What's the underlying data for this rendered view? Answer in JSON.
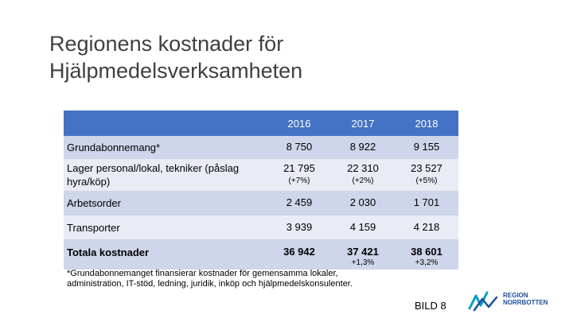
{
  "title": {
    "line1": "Regionens kostnader för",
    "line2": "Hjälpmedelsverksamheten"
  },
  "table": {
    "years": [
      "2016",
      "2017",
      "2018"
    ],
    "rows": [
      {
        "label": "Grundabonnemang*",
        "values": [
          "8 750",
          "8 922",
          "9 155"
        ],
        "changes": []
      },
      {
        "label": "Lager personal/lokal, tekniker (påslag hyra/köp)",
        "values": [
          "21 795",
          "22 310",
          "23 527"
        ],
        "changes": [
          "(+7%)",
          "(+2%)",
          "(+5%)"
        ]
      },
      {
        "label": "Arbetsorder",
        "values": [
          "2 459",
          "2 030",
          "1 701"
        ],
        "changes": []
      },
      {
        "label": "Transporter",
        "values": [
          "3 939",
          "4 159",
          "4 218"
        ],
        "changes": []
      },
      {
        "label": "Totala kostnader",
        "values": [
          "36 942",
          "37 421",
          "38 601"
        ],
        "changes": [
          "",
          "+1,3%",
          "+3,2%"
        ]
      }
    ]
  },
  "footnote": {
    "line1": "*Grundabonnemanget finansierar kostnader för gemensamma lokaler,",
    "line2": "administration, IT-stöd, ledning, juridik, inköp och hjälpmedelskonsulenter."
  },
  "slide_number": "BILD 8",
  "logo": {
    "line1": "REGION",
    "line2": "NORRBOTTEN",
    "color": "#1f4e9c",
    "accent": "#00a0c6"
  },
  "colors": {
    "header": "#4472c4",
    "row_dark": "#cfd5ea",
    "row_light": "#e9ebf5"
  }
}
